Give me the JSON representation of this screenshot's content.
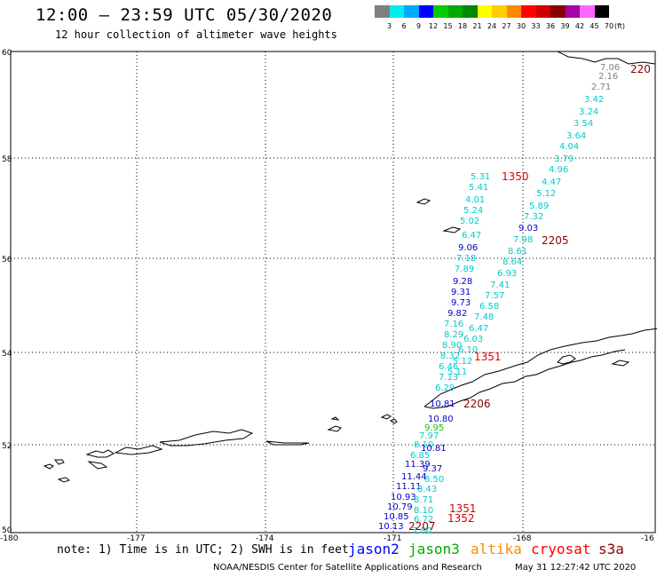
{
  "header": {
    "title": "12:00 — 23:59 UTC 05/30/2020",
    "subtitle": "12 hour collection of altimeter wave heights"
  },
  "colorbar": {
    "labels": [
      "3",
      "6",
      "9",
      "12",
      "15",
      "18",
      "21",
      "24",
      "27",
      "30",
      "33",
      "36",
      "39",
      "42",
      "45",
      "70"
    ],
    "unit": "(ft)",
    "colors": [
      "#7f7f7f",
      "#00eeee",
      "#00aaff",
      "#0000ff",
      "#00cc00",
      "#00aa00",
      "#008800",
      "#ffff00",
      "#ffcc00",
      "#ff8800",
      "#ff0000",
      "#cc0000",
      "#880000",
      "#aa00aa",
      "#ff66ff",
      "#000000"
    ]
  },
  "map": {
    "lat_ticks": [
      "60",
      "58",
      "56",
      "54",
      "52",
      "50"
    ],
    "lon_ticks": [
      "-180",
      "-177",
      "-174",
      "-171",
      "-168",
      "-16"
    ],
    "track_labels": [
      {
        "text": "7.06",
        "color": "#808080"
      },
      {
        "text": "2.16",
        "color": "#808080"
      },
      {
        "text": "2.71",
        "color": "#808080"
      },
      {
        "text": "3.42",
        "color": "#00cccc"
      },
      {
        "text": "3.24",
        "color": "#00cccc"
      },
      {
        "text": "3.54",
        "color": "#00cccc"
      },
      {
        "text": "3.64",
        "color": "#00cccc"
      },
      {
        "text": "4.04",
        "color": "#00cccc"
      },
      {
        "text": "3.79",
        "color": "#00cccc"
      },
      {
        "text": "4.96",
        "color": "#00cccc"
      },
      {
        "text": "4.47",
        "color": "#00cccc"
      },
      {
        "text": "5.12",
        "color": "#00cccc"
      },
      {
        "text": "5.89",
        "color": "#00cccc"
      },
      {
        "text": "7.32",
        "color": "#00cccc"
      },
      {
        "text": "9.03",
        "color": "#0000cc"
      },
      {
        "text": "7.98",
        "color": "#00cccc"
      },
      {
        "text": "8.61",
        "color": "#00cccc"
      },
      {
        "text": "8.64",
        "color": "#00cccc"
      },
      {
        "text": "6.93",
        "color": "#00cccc"
      },
      {
        "text": "7.41",
        "color": "#00cccc"
      },
      {
        "text": "7.57",
        "color": "#00cccc"
      },
      {
        "text": "6.58",
        "color": "#00cccc"
      },
      {
        "text": "7.48",
        "color": "#00cccc"
      },
      {
        "text": "6.47",
        "color": "#00cccc"
      },
      {
        "text": "6.03",
        "color": "#00cccc"
      },
      {
        "text": "6.10",
        "color": "#00cccc"
      },
      {
        "text": "5.12",
        "color": "#00cccc"
      },
      {
        "text": "5.11",
        "color": "#00cccc"
      },
      {
        "text": "5.31",
        "color": "#00cccc"
      },
      {
        "text": "5.41",
        "color": "#00cccc"
      },
      {
        "text": "4.01",
        "color": "#00cccc"
      },
      {
        "text": "5.24",
        "color": "#00cccc"
      },
      {
        "text": "5.02",
        "color": "#00cccc"
      },
      {
        "text": "6.47",
        "color": "#00cccc"
      },
      {
        "text": "9.06",
        "color": "#0000cc"
      },
      {
        "text": "7.18",
        "color": "#00cccc"
      },
      {
        "text": "7.89",
        "color": "#00cccc"
      },
      {
        "text": "9.28",
        "color": "#0000cc"
      },
      {
        "text": "9.31",
        "color": "#0000cc"
      },
      {
        "text": "9.73",
        "color": "#0000cc"
      },
      {
        "text": "9.82",
        "color": "#0000cc"
      },
      {
        "text": "7.16",
        "color": "#00cccc"
      },
      {
        "text": "8.29",
        "color": "#00cccc"
      },
      {
        "text": "8.90",
        "color": "#00cccc"
      },
      {
        "text": "8.32",
        "color": "#00cccc"
      },
      {
        "text": "6.46",
        "color": "#00cccc"
      },
      {
        "text": "7.13",
        "color": "#00cccc"
      },
      {
        "text": "6.29",
        "color": "#00cccc"
      },
      {
        "text": "10.81",
        "color": "#0000cc"
      },
      {
        "text": "10.80",
        "color": "#0000cc"
      },
      {
        "text": "9.95",
        "color": "#00cc00"
      },
      {
        "text": "7.97",
        "color": "#00cccc"
      },
      {
        "text": "8.10",
        "color": "#00cccc"
      },
      {
        "text": "10.81",
        "color": "#0000cc"
      },
      {
        "text": "6.85",
        "color": "#00cccc"
      },
      {
        "text": "11.39",
        "color": "#0000cc"
      },
      {
        "text": "9.37",
        "color": "#0000cc"
      },
      {
        "text": "11.44",
        "color": "#0000cc"
      },
      {
        "text": "8.50",
        "color": "#00cccc"
      },
      {
        "text": "11.11",
        "color": "#0000cc"
      },
      {
        "text": "8.43",
        "color": "#00cccc"
      },
      {
        "text": "10.93",
        "color": "#0000cc"
      },
      {
        "text": "8.71",
        "color": "#00cccc"
      },
      {
        "text": "10.79",
        "color": "#0000cc"
      },
      {
        "text": "8.10",
        "color": "#00cccc"
      },
      {
        "text": "10.85",
        "color": "#0000cc"
      },
      {
        "text": "6.72",
        "color": "#00cccc"
      },
      {
        "text": "10.13",
        "color": "#0000cc"
      },
      {
        "text": "7.80",
        "color": "#00cccc"
      },
      {
        "text": "8.98",
        "color": "#00cccc"
      }
    ],
    "time_labels": [
      {
        "text": "1350",
        "color": "#dd0000"
      },
      {
        "text": "2205",
        "color": "#880000"
      },
      {
        "text": "1351",
        "color": "#dd0000"
      },
      {
        "text": "2206",
        "color": "#880000"
      },
      {
        "text": "1351",
        "color": "#dd0000"
      },
      {
        "text": "1352",
        "color": "#dd0000"
      },
      {
        "text": "2207",
        "color": "#880000"
      },
      {
        "text": "220",
        "color": "#880000"
      }
    ]
  },
  "footer": {
    "note": "note: 1) Time is in UTC; 2) SWH is in feet",
    "legend": [
      {
        "label": "jason2",
        "color": "#0000ff"
      },
      {
        "label": "jason3",
        "color": "#00aa00"
      },
      {
        "label": "altika",
        "color": "#ff8800"
      },
      {
        "label": "cryosat",
        "color": "#ff0000"
      },
      {
        "label": "s3a",
        "color": "#880000"
      }
    ],
    "credit": "NOAA/NESDIS Center for Satellite Applications and Research",
    "timestamp": "May 31 12:27:42 UTC 2020"
  }
}
